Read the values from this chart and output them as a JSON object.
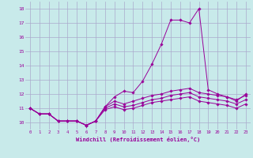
{
  "xlabel": "Windchill (Refroidissement éolien,°C)",
  "background_color": "#c8eaea",
  "grid_color": "#aaaacc",
  "line_color": "#990099",
  "x": [
    0,
    1,
    2,
    3,
    4,
    5,
    6,
    7,
    8,
    9,
    10,
    11,
    12,
    13,
    14,
    15,
    16,
    17,
    18,
    19,
    20,
    21,
    22,
    23
  ],
  "line1": [
    11.0,
    10.6,
    10.6,
    10.1,
    10.1,
    10.1,
    9.8,
    10.1,
    11.1,
    11.8,
    12.2,
    12.1,
    12.9,
    14.1,
    15.5,
    17.2,
    17.2,
    17.0,
    18.0,
    12.3,
    12.0,
    11.8,
    11.5,
    12.0
  ],
  "line2": [
    11.0,
    10.6,
    10.6,
    10.1,
    10.1,
    10.1,
    9.8,
    10.1,
    11.1,
    11.5,
    11.3,
    11.5,
    11.7,
    11.9,
    12.0,
    12.2,
    12.3,
    12.4,
    12.1,
    12.0,
    11.9,
    11.8,
    11.6,
    11.9
  ],
  "line3": [
    11.0,
    10.6,
    10.6,
    10.1,
    10.1,
    10.1,
    9.8,
    10.1,
    11.0,
    11.3,
    11.1,
    11.2,
    11.4,
    11.6,
    11.7,
    11.9,
    12.0,
    12.1,
    11.8,
    11.7,
    11.6,
    11.5,
    11.3,
    11.6
  ],
  "line4": [
    11.0,
    10.6,
    10.6,
    10.1,
    10.1,
    10.1,
    9.8,
    10.1,
    10.9,
    11.1,
    10.9,
    11.0,
    11.2,
    11.4,
    11.5,
    11.6,
    11.7,
    11.8,
    11.5,
    11.4,
    11.3,
    11.2,
    11.0,
    11.3
  ],
  "ylim": [
    9.5,
    18.5
  ],
  "xlim": [
    -0.5,
    23.5
  ],
  "yticks": [
    10,
    11,
    12,
    13,
    14,
    15,
    16,
    17,
    18
  ],
  "xticks": [
    0,
    1,
    2,
    3,
    4,
    5,
    6,
    7,
    8,
    9,
    10,
    11,
    12,
    13,
    14,
    15,
    16,
    17,
    18,
    19,
    20,
    21,
    22,
    23
  ]
}
